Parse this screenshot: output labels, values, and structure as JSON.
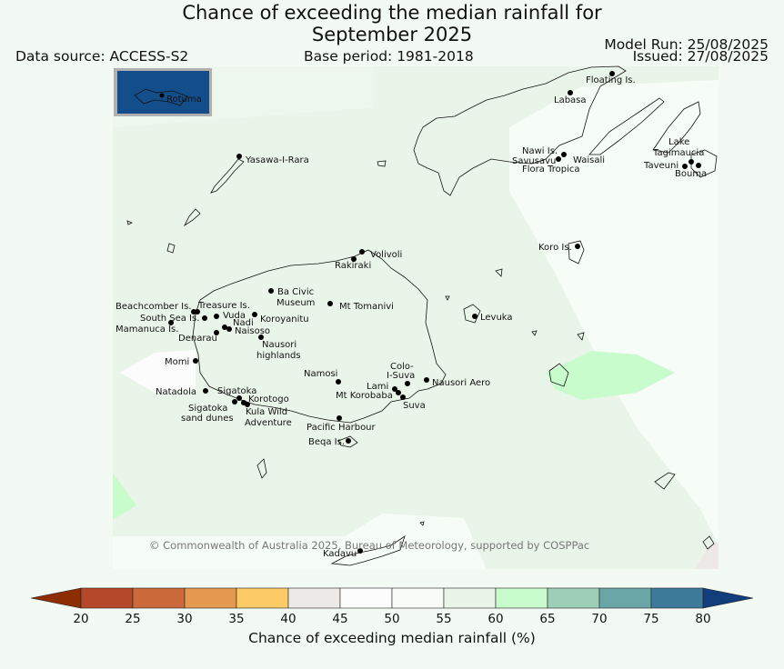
{
  "title_line1": "Chance of exceeding the median rainfall for",
  "title_line2": "September 2025",
  "data_source": "Data source: ACCESS-S2",
  "base_period": "Base period: 1981-2018",
  "model_run": "Model Run: 25/08/2025",
  "issued": "Issued: 27/08/2025",
  "inset_label": "Rotuma",
  "copyright": "© Commonwealth of Australia 2025, Bureau of Meteorology, supported by COSPPac",
  "places": [
    {
      "name": "Floating Is."
    },
    {
      "name": "Labasa"
    },
    {
      "name": "Yasawa-I-Rara"
    },
    {
      "name": "Nawi Is."
    },
    {
      "name": "Savusavu"
    },
    {
      "name": "Waisali"
    },
    {
      "name": "Flora Tropica"
    },
    {
      "name": "Lake"
    },
    {
      "name": "Tagimaucia"
    },
    {
      "name": "Taveuni"
    },
    {
      "name": "Bouma"
    },
    {
      "name": "Koro Is."
    },
    {
      "name": "Volivoli"
    },
    {
      "name": "Rakiraki"
    },
    {
      "name": "Ba Civic"
    },
    {
      "name": "Museum"
    },
    {
      "name": "Mt Tomanivi"
    },
    {
      "name": "Beachcomber Is."
    },
    {
      "name": "Treasure Is."
    },
    {
      "name": "South Sea Is."
    },
    {
      "name": "Vuda"
    },
    {
      "name": "Koroyanitu"
    },
    {
      "name": "Nadi"
    },
    {
      "name": "Mamanuca Is."
    },
    {
      "name": "Naisoso"
    },
    {
      "name": "Denarau"
    },
    {
      "name": "Nausori"
    },
    {
      "name": "highlands"
    },
    {
      "name": "Levuka"
    },
    {
      "name": "Momi"
    },
    {
      "name": "Namosi"
    },
    {
      "name": "Colo-"
    },
    {
      "name": "I-Suva"
    },
    {
      "name": "Lami"
    },
    {
      "name": "Nausori Aero"
    },
    {
      "name": "Mt Korobaba"
    },
    {
      "name": "Natadola"
    },
    {
      "name": "Sigatoka"
    },
    {
      "name": "Korotogo"
    },
    {
      "name": "Suva"
    },
    {
      "name": "Sigatoka"
    },
    {
      "name": "sand dunes"
    },
    {
      "name": "Kula Wild"
    },
    {
      "name": "Adventure"
    },
    {
      "name": "Pacific Harbour"
    },
    {
      "name": "Beqa Is."
    },
    {
      "name": "Kadavu"
    }
  ],
  "colorbar": {
    "title": "Chance of exceeding median rainfall (%)",
    "ticks": [
      "20",
      "25",
      "30",
      "35",
      "40",
      "45",
      "50",
      "55",
      "60",
      "65",
      "70",
      "75",
      "80"
    ],
    "colors": [
      "#8c2d04",
      "#b5482a",
      "#cc6a3c",
      "#e49a4e",
      "#fccb67",
      "#ece9e6",
      "#fbfcfb",
      "#f7fcf7",
      "#eaf5ea",
      "#c8fccc",
      "#9dcfb8",
      "#6aa5a8",
      "#3e7a9a",
      "#123f7b"
    ]
  },
  "legend_note": "map shading: 40-80%"
}
